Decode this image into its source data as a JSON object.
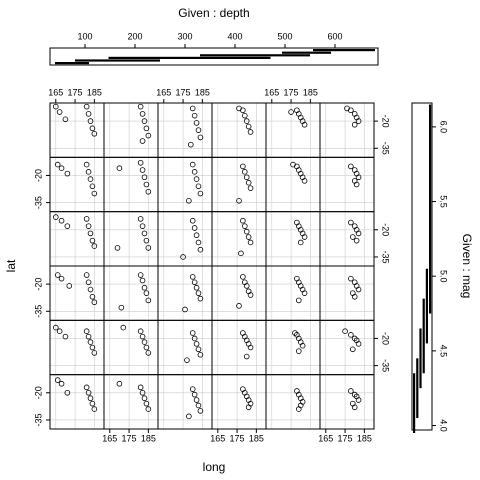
{
  "chart_data": {
    "type": "coplot",
    "x_label": "long",
    "y_label": "lat",
    "given1_label": "Given : depth",
    "given2_label": "Given : mag",
    "xlim": [
      162,
      190
    ],
    "ylim": [
      -40,
      -10
    ],
    "xticks": [
      165,
      175,
      185
    ],
    "yticks": [
      -20,
      -35
    ],
    "grid": true,
    "depth_lim": [
      30,
      686
    ],
    "depth_ticks": [
      100,
      200,
      300,
      400,
      500,
      600
    ],
    "depth_intervals": [
      [
        40,
        108
      ],
      [
        80,
        250
      ],
      [
        147,
        471
      ],
      [
        330,
        550
      ],
      [
        494,
        592
      ],
      [
        556,
        680
      ]
    ],
    "mag_lim": [
      3.97,
      6.16
    ],
    "mag_ticks": [
      {
        "value": 4.0,
        "label": "4.0"
      },
      4.5,
      {
        "value": 5.0,
        "label": "5.0"
      },
      5.5,
      {
        "value": 6.0,
        "label": "6.0"
      }
    ],
    "mag_intervals": [
      [
        3.95,
        4.35
      ],
      [
        4.05,
        4.45
      ],
      [
        4.25,
        4.65
      ],
      [
        4.35,
        4.85
      ],
      [
        4.55,
        5.05
      ],
      [
        4.75,
        6.15
      ]
    ],
    "panels": [
      [
        {
          "long": [
            166,
            168,
            171,
            181,
            182,
            183,
            184,
            185
          ],
          "lat": [
            -13,
            -15,
            -20,
            -17,
            -20,
            -23,
            -26,
            -29
          ]
        },
        {
          "long": [
            181,
            182,
            183,
            184,
            185,
            170
          ],
          "lat": [
            -17,
            -20,
            -23,
            -26,
            -29,
            -15
          ]
        },
        {
          "long": [
            180,
            181,
            182,
            183,
            184,
            178
          ],
          "lat": [
            -18,
            -21,
            -24,
            -27,
            -30,
            -33
          ]
        },
        {
          "long": [
            178,
            179,
            180,
            181,
            182,
            181
          ],
          "lat": [
            -18,
            -20,
            -22,
            -24,
            -26,
            -28
          ]
        },
        {
          "long": [
            178,
            179,
            180,
            181,
            180,
            179
          ],
          "lat": [
            -19,
            -21,
            -23,
            -25,
            -27,
            -29
          ]
        },
        {
          "long": [
            178,
            180,
            181,
            182,
            179,
            180
          ],
          "lat": [
            -19,
            -21,
            -22,
            -24,
            -26,
            -28
          ]
        }
      ],
      [
        {
          "long": [
            165,
            167,
            170,
            181,
            182,
            183,
            184,
            185
          ],
          "lat": [
            -14,
            -16,
            -19,
            -16,
            -19,
            -22,
            -25,
            -28
          ]
        },
        {
          "long": [
            181,
            182,
            183,
            184,
            185,
            172
          ],
          "lat": [
            -16,
            -19,
            -22,
            -25,
            -28,
            -14
          ]
        },
        {
          "long": [
            180,
            181,
            182,
            183,
            184,
            177
          ],
          "lat": [
            -17,
            -20,
            -23,
            -26,
            -29,
            -32
          ]
        },
        {
          "long": [
            178,
            179,
            180,
            181,
            182,
            180
          ],
          "lat": [
            -17,
            -19,
            -21,
            -23,
            -25,
            -30
          ]
        },
        {
          "long": [
            178,
            179,
            180,
            181,
            177,
            179
          ],
          "lat": [
            -18,
            -20,
            -22,
            -24,
            -17,
            -27
          ]
        },
        {
          "long": [
            178,
            180,
            181,
            182,
            175,
            179
          ],
          "lat": [
            -18,
            -20,
            -21,
            -23,
            -16,
            -26
          ]
        }
      ],
      [
        {
          "long": [
            166,
            168,
            172,
            181,
            182,
            183,
            184,
            185
          ],
          "lat": [
            -15,
            -17,
            -21,
            -15,
            -19,
            -23,
            -27,
            -30
          ]
        },
        {
          "long": [
            181,
            182,
            183,
            184,
            185,
            171
          ],
          "lat": [
            -15,
            -18,
            -22,
            -25,
            -29,
            -33
          ]
        },
        {
          "long": [
            180,
            181,
            182,
            183,
            184,
            176
          ],
          "lat": [
            -16,
            -19,
            -22,
            -25,
            -28,
            -34
          ]
        },
        {
          "long": [
            178,
            179,
            180,
            181,
            182,
            176
          ],
          "lat": [
            -16,
            -19,
            -21,
            -24,
            -26,
            -32
          ]
        },
        {
          "long": [
            178,
            179,
            180,
            181,
            182,
            179
          ],
          "lat": [
            -17,
            -19,
            -21,
            -23,
            -25,
            -29
          ]
        },
        {
          "long": [
            178,
            180,
            181,
            182,
            179,
            180
          ],
          "lat": [
            -17,
            -19,
            -21,
            -23,
            -25,
            -27
          ]
        }
      ],
      [
        {
          "long": [
            165,
            168,
            171,
            181,
            182,
            183,
            184,
            185
          ],
          "lat": [
            -13,
            -15,
            -18,
            -14,
            -18,
            -22,
            -26,
            -29
          ]
        },
        {
          "long": [
            181,
            182,
            183,
            184,
            185,
            169
          ],
          "lat": [
            -14,
            -18,
            -22,
            -26,
            -30,
            -30
          ]
        },
        {
          "long": [
            180,
            181,
            182,
            183,
            184,
            175
          ],
          "lat": [
            -15,
            -19,
            -23,
            -27,
            -31,
            -35
          ]
        },
        {
          "long": [
            178,
            179,
            180,
            181,
            182,
            177
          ],
          "lat": [
            -15,
            -18,
            -21,
            -24,
            -27,
            -33
          ]
        },
        {
          "long": [
            178,
            179,
            180,
            181,
            182,
            180
          ],
          "lat": [
            -16,
            -18,
            -20,
            -22,
            -24,
            -27
          ]
        },
        {
          "long": [
            178,
            180,
            181,
            182,
            179,
            181
          ],
          "lat": [
            -16,
            -18,
            -20,
            -22,
            -24,
            -26
          ]
        }
      ],
      [
        {
          "long": [
            166,
            168,
            171,
            181,
            182,
            183,
            184,
            185
          ],
          "lat": [
            -14,
            -16,
            -19,
            -14,
            -18,
            -22,
            -26,
            -30
          ]
        },
        {
          "long": [
            181,
            182,
            183,
            184,
            185,
            170
          ],
          "lat": [
            -13,
            -17,
            -21,
            -25,
            -29,
            -16
          ]
        },
        {
          "long": [
            180,
            181,
            182,
            183,
            184,
            178
          ],
          "lat": [
            -14,
            -18,
            -22,
            -26,
            -30,
            -34
          ]
        },
        {
          "long": [
            178,
            179,
            180,
            181,
            182,
            176
          ],
          "lat": [
            -15,
            -18,
            -21,
            -24,
            -27,
            -34
          ]
        },
        {
          "long": [
            178,
            179,
            180,
            181,
            182,
            176
          ],
          "lat": [
            -15,
            -17,
            -19,
            -21,
            -23,
            -14
          ]
        },
        {
          "long": [
            178,
            180,
            181,
            182,
            180,
            181
          ],
          "lat": [
            -15,
            -17,
            -19,
            -21,
            -23,
            -25
          ]
        }
      ],
      [
        {
          "long": [
            165,
            167,
            170,
            181,
            182,
            183,
            184,
            185
          ],
          "lat": [
            -12,
            -15,
            -19,
            -12,
            -16,
            -20,
            -24,
            -27
          ]
        },
        {
          "long": [
            181,
            182,
            183,
            184,
            185,
            182
          ],
          "lat": [
            -12,
            -16,
            -20,
            -24,
            -28,
            -31
          ]
        },
        {
          "long": [
            180,
            181,
            182,
            183,
            184,
            179
          ],
          "lat": [
            -13,
            -17,
            -21,
            -25,
            -29,
            -33
          ]
        },
        {
          "long": [
            178,
            179,
            180,
            181,
            182,
            176
          ],
          "lat": [
            -14,
            -17,
            -20,
            -23,
            -26,
            -13
          ]
        },
        {
          "long": [
            178,
            179,
            180,
            181,
            182,
            175
          ],
          "lat": [
            -14,
            -16,
            -18,
            -20,
            -22,
            -15
          ]
        },
        {
          "long": [
            178,
            180,
            181,
            182,
            176,
            180
          ],
          "lat": [
            -14,
            -16,
            -18,
            -20,
            -13,
            -22
          ]
        }
      ]
    ]
  }
}
